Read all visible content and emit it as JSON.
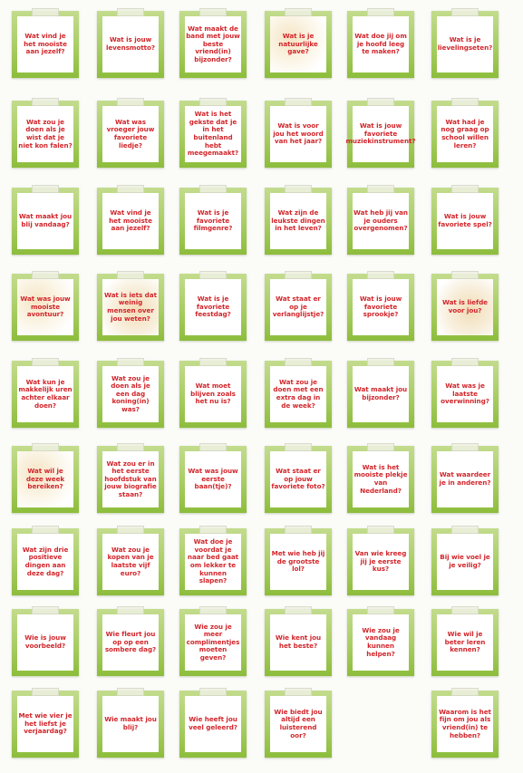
{
  "cards": [
    {
      "text": "Wat vind je het mooiste aan jezelf?"
    },
    {
      "text": "Wat is jouw levensmotto?"
    },
    {
      "text": "Wat maakt de band met jouw beste vriend(in) bijzonder?"
    },
    {
      "text": "Wat is je natuurlijke gave?"
    },
    {
      "text": "Wat doe jij om je hoofd leeg te maken?"
    },
    {
      "text": "Wat is je lievelingseten?"
    },
    {
      "text": "Wat zou je doen als je wist dat je niet kon falen?"
    },
    {
      "text": "Wat was vroeger jouw favoriete liedje?"
    },
    {
      "text": "Wat is het gekste dat je in het buitenland hebt meegemaakt?"
    },
    {
      "text": "Wat is voor jou het woord van het jaar?"
    },
    {
      "text": "Wat is jouw favoriete muziekinstrument?"
    },
    {
      "text": "Wat had je nog graag op school willen leren?"
    },
    {
      "text": "Wat maakt jou blij vandaag?"
    },
    {
      "text": "Wat vind je het mooiste aan jezelf?"
    },
    {
      "text": "Wat is je favoriete filmgenre?"
    },
    {
      "text": "Wat zijn de leukste dingen in het leven?"
    },
    {
      "text": "Wat heb jij van je ouders overgenomen?"
    },
    {
      "text": "Wat is jouw favoriete spel?"
    },
    {
      "text": "Wat was jouw mooiste avontuur?"
    },
    {
      "text": "Wat is iets dat weinig mensen over jou weten?"
    },
    {
      "text": "Wat is je favoriete feestdag?"
    },
    {
      "text": "Wat staat er op je verlanglijstje?"
    },
    {
      "text": "Wat is jouw favoriete sprookje?"
    },
    {
      "text": "Wat is liefde voor jou?"
    },
    {
      "text": "Wat kun je makkelijk uren achter elkaar doen?"
    },
    {
      "text": "Wat zou je doen als je een dag koning(in) was?"
    },
    {
      "text": "Wat moet blijven zoals het nu is?"
    },
    {
      "text": "Wat zou je doen met een extra dag in de week?"
    },
    {
      "text": "Wat maakt jou bijzonder?"
    },
    {
      "text": "Wat was je laatste overwinning?"
    },
    {
      "text": "Wat wil je deze week bereiken?"
    },
    {
      "text": "Wat zou er in het eerste hoofdstuk van jouw biografie staan?"
    },
    {
      "text": "Wat was jouw eerste baan(tje)?"
    },
    {
      "text": "Wat staat er op jouw favoriete foto?"
    },
    {
      "text": "Wat is het mooiste plekje van Nederland?"
    },
    {
      "text": "Wat waardeer je in anderen?"
    },
    {
      "text": "Wat zijn drie positieve dingen aan deze dag?"
    },
    {
      "text": "Wat zou je kopen van je laatste vijf euro?"
    },
    {
      "text": "Wat doe je voordat je naar bed gaat om lekker te kunnen slapen?"
    },
    {
      "text": "Met wie heb jij de grootste lol?"
    },
    {
      "text": "Van wie kreeg jij je eerste kus?"
    },
    {
      "text": "Bij wie voel je je veilig?"
    },
    {
      "text": "Wie is jouw voorbeeld?"
    },
    {
      "text": "Wie fleurt jou op op een sombere dag?"
    },
    {
      "text": "Wie zou je meer complimentjes moeten geven?"
    },
    {
      "text": "Wie kent jou het beste?"
    },
    {
      "text": "Wie zou je vandaag kunnen helpen?"
    },
    {
      "text": "Wie wil je beter leren kennen?"
    },
    {
      "text": "Met wie vier je het liefst je verjaardag?"
    },
    {
      "text": "Wie maakt jou blij?"
    },
    {
      "text": "Wie heeft jou veel geleerd?"
    },
    {
      "text": "Wie biedt jou altijd een luisterend oor?"
    },
    {
      "text": "Waarom is het fijn om jou als vriend(in) te hebben?"
    }
  ]
}
